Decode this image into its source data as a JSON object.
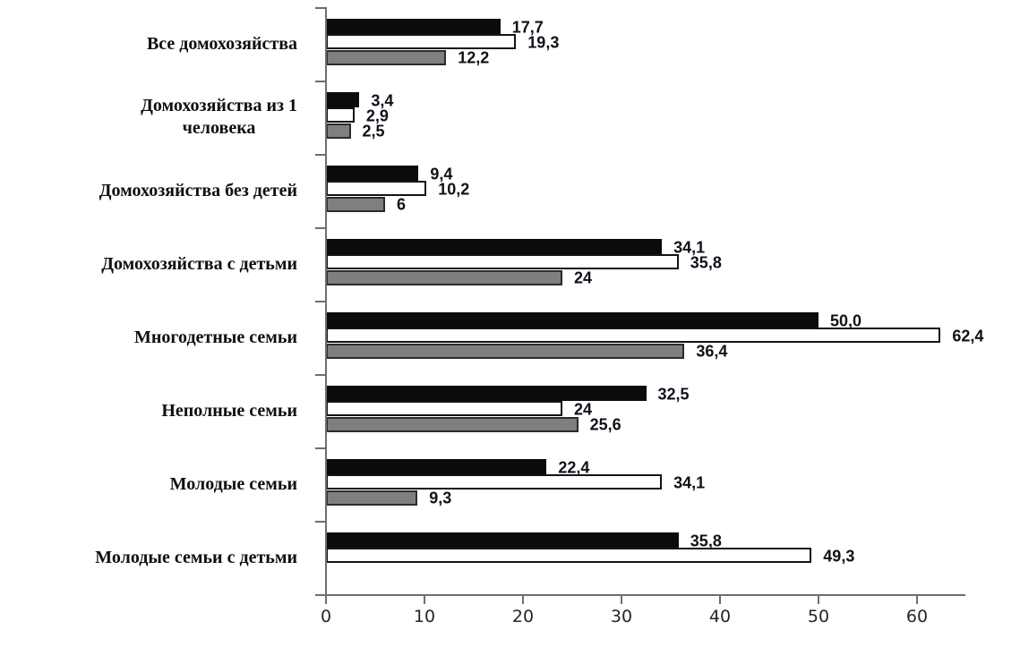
{
  "chart_data": {
    "type": "bar",
    "orientation": "horizontal",
    "title": "",
    "xlabel": "",
    "ylabel": "",
    "xlim": [
      0,
      65
    ],
    "x_ticks": [
      "0",
      "10",
      "20",
      "30",
      "40",
      "50",
      "60"
    ],
    "grid": false,
    "legend": false,
    "categories": [
      "Все домохозяйства",
      "Домохозяйства из  1\nчеловека",
      "Домохозяйства без детей",
      "Домохозяйства с детьми",
      "Многодетные семьи",
      "Неполные семьи",
      "Молодые семьи",
      "Молодые семьи с детьми"
    ],
    "series": [
      {
        "name": "black",
        "color": "#0b0b0b",
        "border": "#0b0b0b",
        "values": [
          17.7,
          3.4,
          9.4,
          34.1,
          50.0,
          32.5,
          22.4,
          35.8
        ],
        "labels": [
          "17,7",
          "3,4",
          "9,4",
          "34,1",
          "50,0",
          "32,5",
          "22,4",
          "35,8"
        ]
      },
      {
        "name": "white",
        "color": "#ffffff",
        "border": "#141414",
        "values": [
          19.3,
          2.9,
          10.2,
          35.8,
          62.4,
          24,
          34.1,
          49.3
        ],
        "labels": [
          "19,3",
          "2,9",
          "10,2",
          "35,8",
          "62,4",
          "24",
          "34,1",
          "49,3"
        ]
      },
      {
        "name": "gray",
        "color": "#7f7f7f",
        "border": "#2b2b2b",
        "values": [
          12.2,
          2.5,
          6,
          24,
          36.4,
          25.6,
          9.3,
          null
        ],
        "labels": [
          "12,2",
          "2,5",
          "6",
          "24",
          "36,4",
          "25,6",
          "9,3",
          null
        ]
      }
    ]
  }
}
